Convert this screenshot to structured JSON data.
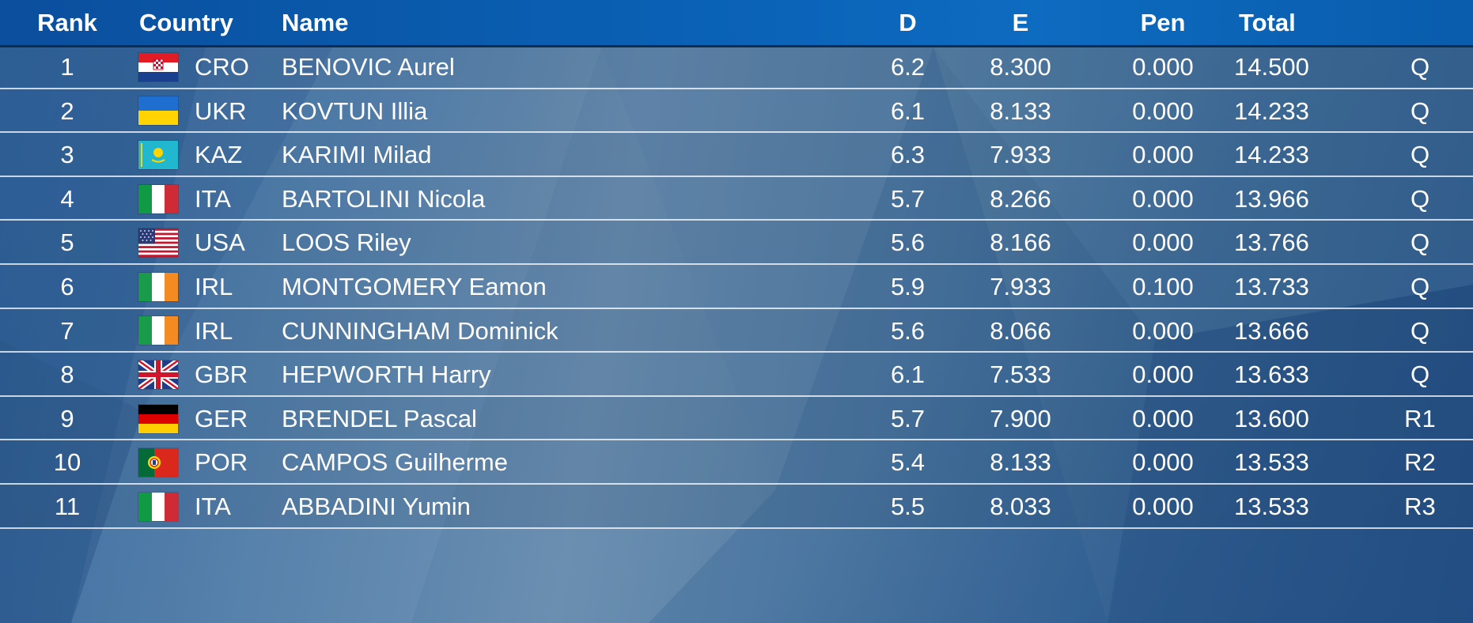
{
  "header": {
    "rank": "Rank",
    "country": "Country",
    "name": "Name",
    "d": "D",
    "e": "E",
    "pen": "Pen",
    "total": "Total"
  },
  "rows": [
    {
      "rank": "1",
      "code": "CRO",
      "flag": "croatia-flag",
      "name": "BENOVIC Aurel",
      "d": "6.2",
      "e": "8.300",
      "pen": "0.000",
      "total": "14.500",
      "q": "Q"
    },
    {
      "rank": "2",
      "code": "UKR",
      "flag": "ukraine-flag",
      "name": "KOVTUN Illia",
      "d": "6.1",
      "e": "8.133",
      "pen": "0.000",
      "total": "14.233",
      "q": "Q"
    },
    {
      "rank": "3",
      "code": "KAZ",
      "flag": "kazakhstan-flag",
      "name": "KARIMI Milad",
      "d": "6.3",
      "e": "7.933",
      "pen": "0.000",
      "total": "14.233",
      "q": "Q"
    },
    {
      "rank": "4",
      "code": "ITA",
      "flag": "italy-flag",
      "name": "BARTOLINI Nicola",
      "d": "5.7",
      "e": "8.266",
      "pen": "0.000",
      "total": "13.966",
      "q": "Q"
    },
    {
      "rank": "5",
      "code": "USA",
      "flag": "usa-flag",
      "name": "LOOS Riley",
      "d": "5.6",
      "e": "8.166",
      "pen": "0.000",
      "total": "13.766",
      "q": "Q"
    },
    {
      "rank": "6",
      "code": "IRL",
      "flag": "ireland-flag",
      "name": "MONTGOMERY Eamon",
      "d": "5.9",
      "e": "7.933",
      "pen": "0.100",
      "total": "13.733",
      "q": "Q"
    },
    {
      "rank": "7",
      "code": "IRL",
      "flag": "ireland-flag",
      "name": "CUNNINGHAM Dominick",
      "d": "5.6",
      "e": "8.066",
      "pen": "0.000",
      "total": "13.666",
      "q": "Q"
    },
    {
      "rank": "8",
      "code": "GBR",
      "flag": "uk-flag",
      "name": "HEPWORTH Harry",
      "d": "6.1",
      "e": "7.533",
      "pen": "0.000",
      "total": "13.633",
      "q": "Q"
    },
    {
      "rank": "9",
      "code": "GER",
      "flag": "germany-flag",
      "name": "BRENDEL Pascal",
      "d": "5.7",
      "e": "7.900",
      "pen": "0.000",
      "total": "13.600",
      "q": "R1"
    },
    {
      "rank": "10",
      "code": "POR",
      "flag": "portugal-flag",
      "name": "CAMPOS Guilherme",
      "d": "5.4",
      "e": "8.133",
      "pen": "0.000",
      "total": "13.533",
      "q": "R2"
    },
    {
      "rank": "11",
      "code": "ITA",
      "flag": "italy-flag",
      "name": "ABBADINI Yumin",
      "d": "5.5",
      "e": "8.033",
      "pen": "0.000",
      "total": "13.533",
      "q": "R3"
    }
  ]
}
